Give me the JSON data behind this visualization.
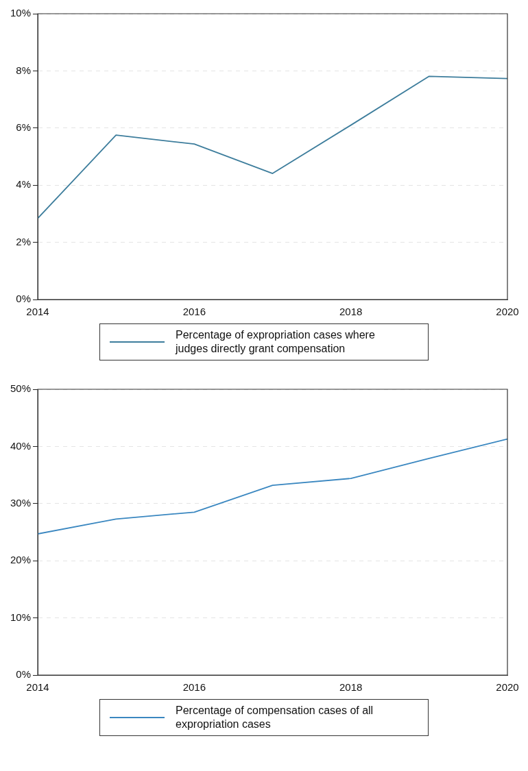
{
  "chart_data": [
    {
      "type": "line",
      "x": [
        2014,
        2015,
        2016,
        2017,
        2018,
        2019,
        2020
      ],
      "series": [
        {
          "name": "Percentage of expropriation cases where judges directly grant compensation",
          "color": "#3d7d9c",
          "values": [
            2.84,
            5.75,
            5.44,
            4.41,
            6.1,
            7.81,
            7.73
          ]
        }
      ],
      "xlim": [
        2014,
        2020
      ],
      "xticks": [
        2014,
        2016,
        2018,
        2020
      ],
      "ylim": [
        0,
        10
      ],
      "yticks": [
        {
          "value": 0,
          "label": "0%"
        },
        {
          "value": 2,
          "label": "2%"
        },
        {
          "value": 4,
          "label": "4%"
        },
        {
          "value": 6,
          "label": "6%"
        },
        {
          "value": 8,
          "label": "8%"
        },
        {
          "value": 10,
          "label": "10%"
        }
      ],
      "grid": "y",
      "legend": "bottom",
      "marker": "none",
      "line_style": "solid"
    },
    {
      "type": "line",
      "x": [
        2014,
        2015,
        2016,
        2017,
        2018,
        2019,
        2020
      ],
      "series": [
        {
          "name": "Percentage of compensation cases of all expropriation cases",
          "color": "#3a87c0",
          "values": [
            24.7,
            27.3,
            28.5,
            33.2,
            34.4,
            37.9,
            41.3
          ]
        }
      ],
      "xlim": [
        2014,
        2020
      ],
      "xticks": [
        2014,
        2016,
        2018,
        2020
      ],
      "ylim": [
        0,
        50
      ],
      "yticks": [
        {
          "value": 0,
          "label": "0%"
        },
        {
          "value": 10,
          "label": "10%"
        },
        {
          "value": 20,
          "label": "20%"
        },
        {
          "value": 30,
          "label": "30%"
        },
        {
          "value": 40,
          "label": "40%"
        },
        {
          "value": 50,
          "label": "50%"
        }
      ],
      "grid": "y",
      "legend": "bottom",
      "marker": "none",
      "line_style": "solid"
    }
  ]
}
